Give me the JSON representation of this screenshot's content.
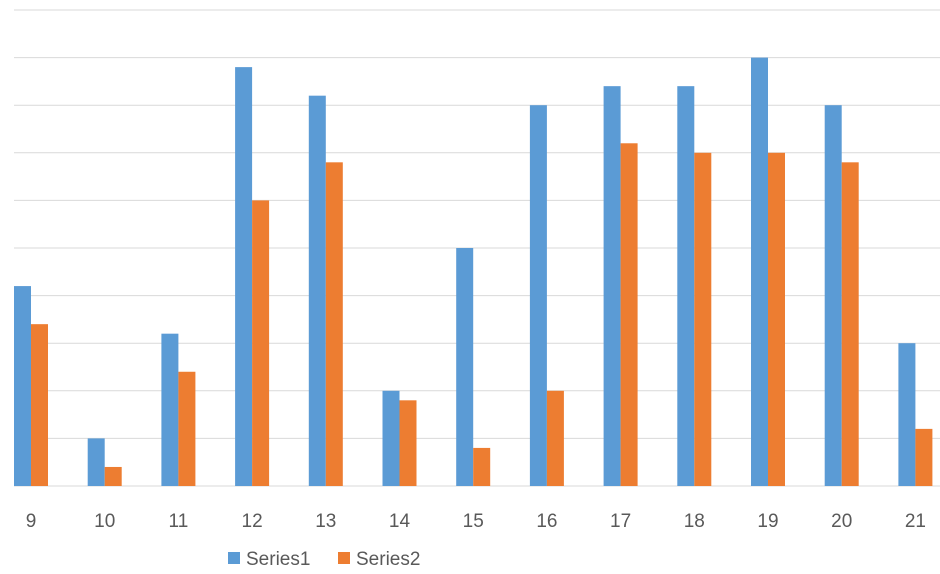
{
  "chart_data": {
    "type": "bar",
    "categories": [
      "9",
      "10",
      "11",
      "12",
      "13",
      "14",
      "15",
      "16",
      "17",
      "18",
      "19",
      "20",
      "21"
    ],
    "series": [
      {
        "name": "Series1",
        "color": "#5b9bd5",
        "values": [
          21,
          5,
          16,
          44,
          41,
          10,
          25,
          40,
          42,
          42,
          45,
          40,
          15
        ]
      },
      {
        "name": "Series2",
        "color": "#ed7d31",
        "values": [
          17,
          2,
          12,
          30,
          34,
          9,
          4,
          10,
          36,
          35,
          35,
          34,
          6
        ]
      }
    ],
    "ylim": [
      0,
      50
    ],
    "y_gridline_step": 5,
    "y_tick_labels_shown": false,
    "grid": true,
    "legend_position": "bottom",
    "title": "",
    "xlabel": "",
    "ylabel": ""
  }
}
